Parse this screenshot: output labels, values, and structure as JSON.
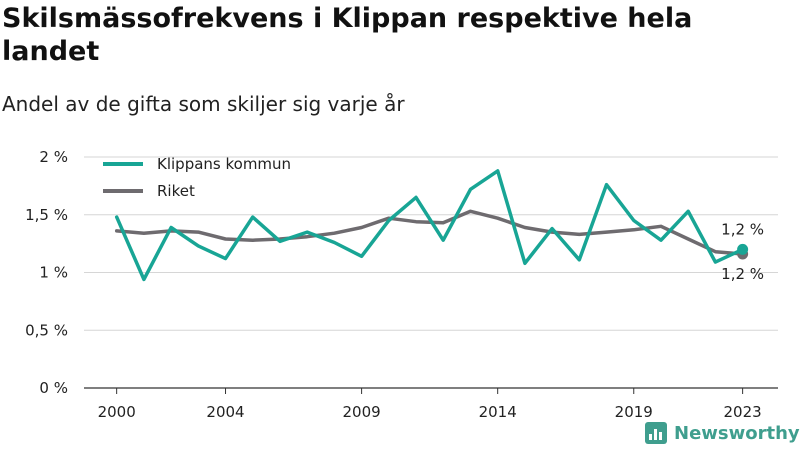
{
  "header": {
    "title": "Skilsmässofrekvens i Klippan respektive hela landet",
    "subtitle": "Andel av de gifta som skiljer sig varje år"
  },
  "brand": {
    "name": "Newsworthy",
    "icon": "newsworthy-logo-icon",
    "color": "#3f9e8e"
  },
  "chart_data": {
    "type": "line",
    "title": "Skilsmässofrekvens i Klippan respektive hela landet",
    "subtitle": "Andel av de gifta som skiljer sig varje år",
    "x": [
      2000,
      2001,
      2002,
      2003,
      2004,
      2005,
      2006,
      2007,
      2008,
      2009,
      2010,
      2011,
      2012,
      2013,
      2014,
      2015,
      2016,
      2017,
      2018,
      2019,
      2020,
      2021,
      2022,
      2023
    ],
    "xticks": [
      2000,
      2004,
      2009,
      2014,
      2019,
      2023
    ],
    "xlim": [
      1998.8,
      2024.3
    ],
    "ylim": [
      0,
      2
    ],
    "yticks": [
      0,
      0.5,
      1,
      1.5,
      2
    ],
    "ytick_labels": [
      "0 %",
      "0,5 %",
      "1 %",
      "1,5 %",
      "2 %"
    ],
    "grid": true,
    "legend": "top-left",
    "series": [
      {
        "name": "Klippans kommun",
        "color": "#18a595",
        "values": [
          1.48,
          0.94,
          1.39,
          1.23,
          1.12,
          1.48,
          1.27,
          1.35,
          1.26,
          1.14,
          1.45,
          1.65,
          1.28,
          1.72,
          1.88,
          1.08,
          1.38,
          1.11,
          1.76,
          1.45,
          1.28,
          1.53,
          1.09,
          1.2
        ],
        "end_label": "1,2 %"
      },
      {
        "name": "Riket",
        "color": "#6e6b6f",
        "values": [
          1.36,
          1.34,
          1.36,
          1.35,
          1.29,
          1.28,
          1.29,
          1.31,
          1.34,
          1.39,
          1.47,
          1.44,
          1.43,
          1.53,
          1.47,
          1.39,
          1.35,
          1.33,
          1.35,
          1.37,
          1.4,
          1.29,
          1.18,
          1.16
        ],
        "end_label": "1,2 %"
      }
    ]
  }
}
